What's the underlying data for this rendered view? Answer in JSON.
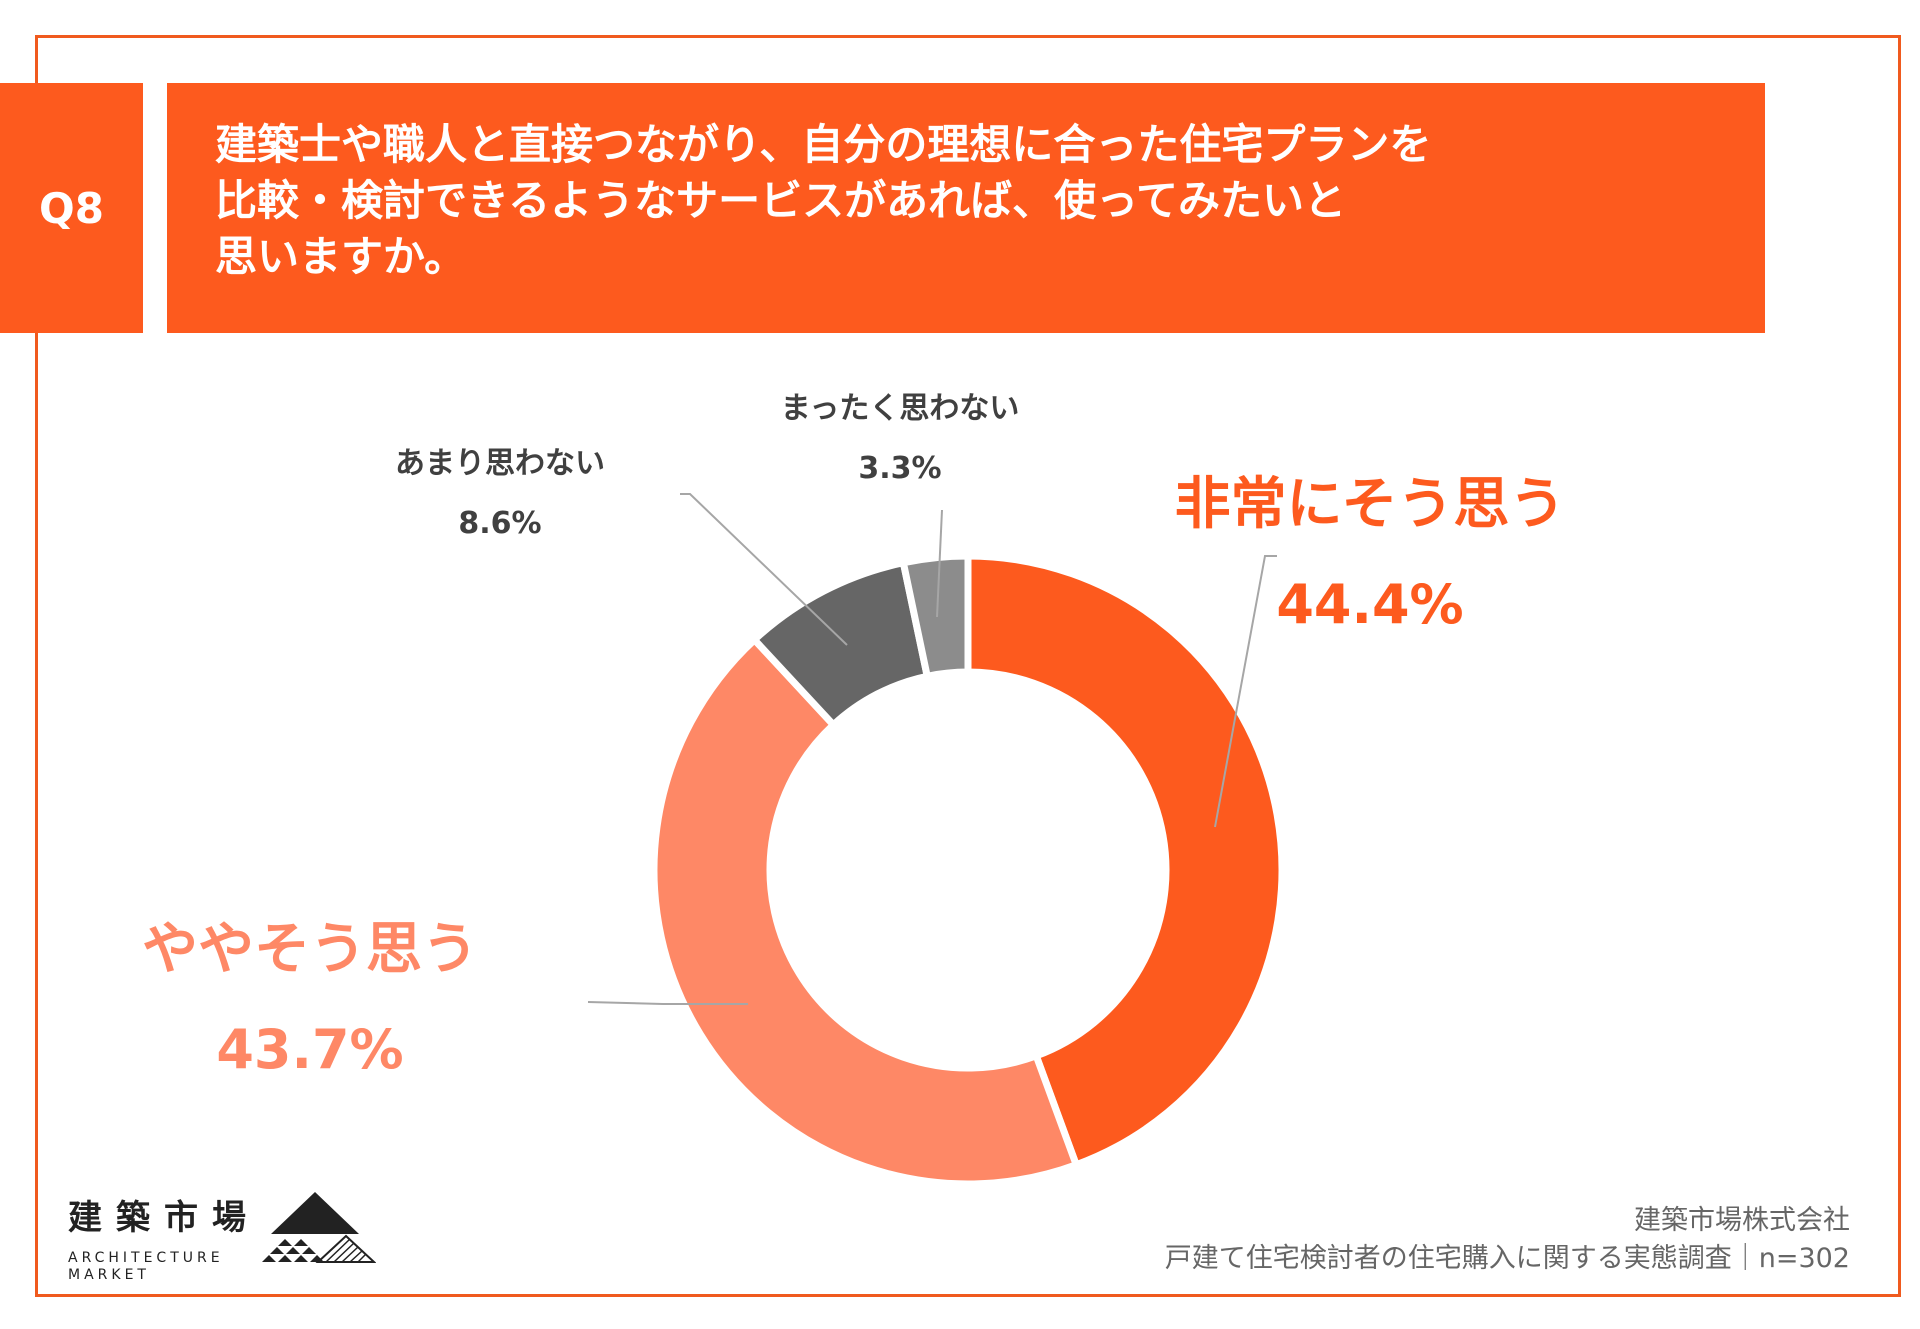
{
  "question": {
    "number": "Q8",
    "lines": [
      "建築士や職人と直接つながり、自分の理想に合った住宅プランを",
      "比較・検討できるようなサービスがあれば、使ってみたいと",
      "思いますか。"
    ]
  },
  "chart_data": {
    "type": "pie",
    "donut": true,
    "title": "",
    "slices": [
      {
        "label": "非常にそう思う",
        "value": 44.4,
        "value_label": "44.4%",
        "color": "#fd5a1e"
      },
      {
        "label": "ややそう思う",
        "value": 43.7,
        "value_label": "43.7%",
        "color": "#fe8866"
      },
      {
        "label": "あまり思わない",
        "value": 8.6,
        "value_label": "8.6%",
        "color": "#666666"
      },
      {
        "label": "まったく思わない",
        "value": 3.3,
        "value_label": "3.3%",
        "color": "#8c8c8c"
      }
    ]
  },
  "logo": {
    "kanji": "建築市場",
    "en_line1": "ARCHITECTURE",
    "en_line2": "MARKET"
  },
  "footer": {
    "company": "建築市場株式会社",
    "survey": "戸建て住宅検討者の住宅購入に関する実態調査｜n=302"
  }
}
